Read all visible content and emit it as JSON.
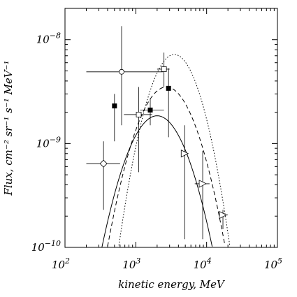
{
  "chart_data": {
    "type": "scatter",
    "title": "",
    "xlabel": "kinetic energy, MeV",
    "ylabel": "Flux, cm⁻² sr⁻¹ s⁻¹ MeV⁻¹",
    "xscale": "log",
    "yscale": "log",
    "xlim": [
      100,
      100000
    ],
    "ylim": [
      1e-10,
      2e-08
    ],
    "x_ticks": [
      {
        "value": 100,
        "mantissa": "10",
        "exp": "2"
      },
      {
        "value": 1000,
        "mantissa": "10",
        "exp": "3"
      },
      {
        "value": 10000,
        "mantissa": "10",
        "exp": "4"
      },
      {
        "value": 100000,
        "mantissa": "10",
        "exp": "5"
      }
    ],
    "y_ticks": [
      {
        "value": 1e-10,
        "mantissa": "10",
        "exp": "−10"
      },
      {
        "value": 1e-09,
        "mantissa": "10",
        "exp": "−9"
      },
      {
        "value": 1e-08,
        "mantissa": "10",
        "exp": "−8"
      }
    ],
    "grid": false,
    "series": [
      {
        "marker": "filled-square",
        "points": [
          {
            "x": 500,
            "y": 2.3e-09,
            "xerr": [
              500,
              500
            ],
            "yerr": [
              1.05e-09,
              3e-09
            ]
          },
          {
            "x": 1600,
            "y": 2.1e-09,
            "xerr": [
              1150,
              2500
            ],
            "yerr": [
              1.5e-09,
              2.7e-09
            ]
          },
          {
            "x": 2900,
            "y": 3.4e-09,
            "xerr": [
              2900,
              2900
            ],
            "yerr": [
              1.15e-09,
              5.3e-09
            ]
          }
        ]
      },
      {
        "marker": "open-circle",
        "points": [
          {
            "x": 630,
            "y": 4.9e-09,
            "xerr": [
              200,
              2400
            ],
            "yerr": [
              1.5e-09,
              1.35e-08
            ]
          }
        ]
      },
      {
        "marker": "open-square",
        "points": [
          {
            "x": 1100,
            "y": 1.9e-09,
            "xerr": [
              680,
              1700
            ],
            "yerr": [
              5.3e-10,
              3.5e-09
            ]
          },
          {
            "x": 2500,
            "y": 5.2e-09,
            "xerr": [
              2000,
              3000
            ],
            "yerr": [
              3.5e-09,
              7.5e-09
            ]
          }
        ]
      },
      {
        "marker": "open-diamond",
        "points": [
          {
            "x": 350,
            "y": 6.4e-10,
            "xerr": [
              200,
              600
            ],
            "yerr": [
              2.3e-10,
              1.05e-09
            ]
          }
        ]
      },
      {
        "marker": "open-triangle-right",
        "points": [
          {
            "x": 4900,
            "y": 8e-10,
            "xerr": [
              4900,
              4900
            ],
            "yerr": [
              1.2e-10,
              1.5e-09
            ]
          },
          {
            "x": 8800,
            "y": 4.1e-10,
            "xerr": [
              6800,
              11000
            ],
            "yerr": [
              1.2e-10,
              8.5e-10
            ]
          },
          {
            "x": 17000,
            "y": 2.05e-10,
            "xerr": [
              15000,
              20000
            ],
            "yerr": [
              1.5e-10,
              2.3e-10
            ]
          }
        ]
      }
    ],
    "curves": [
      {
        "style": "solid",
        "peak_x": 2000,
        "peak_y": 1.85e-09,
        "width": 0.6,
        "xrange": [
          190,
          20000
        ]
      },
      {
        "style": "dashed",
        "peak_x": 2700,
        "peak_y": 3.5e-09,
        "width": 0.58,
        "xrange": [
          150,
          30000
        ]
      },
      {
        "style": "dotted",
        "peak_x": 3500,
        "peak_y": 7.2e-09,
        "width": 0.5,
        "xrange": [
          200,
          40000
        ]
      }
    ]
  }
}
